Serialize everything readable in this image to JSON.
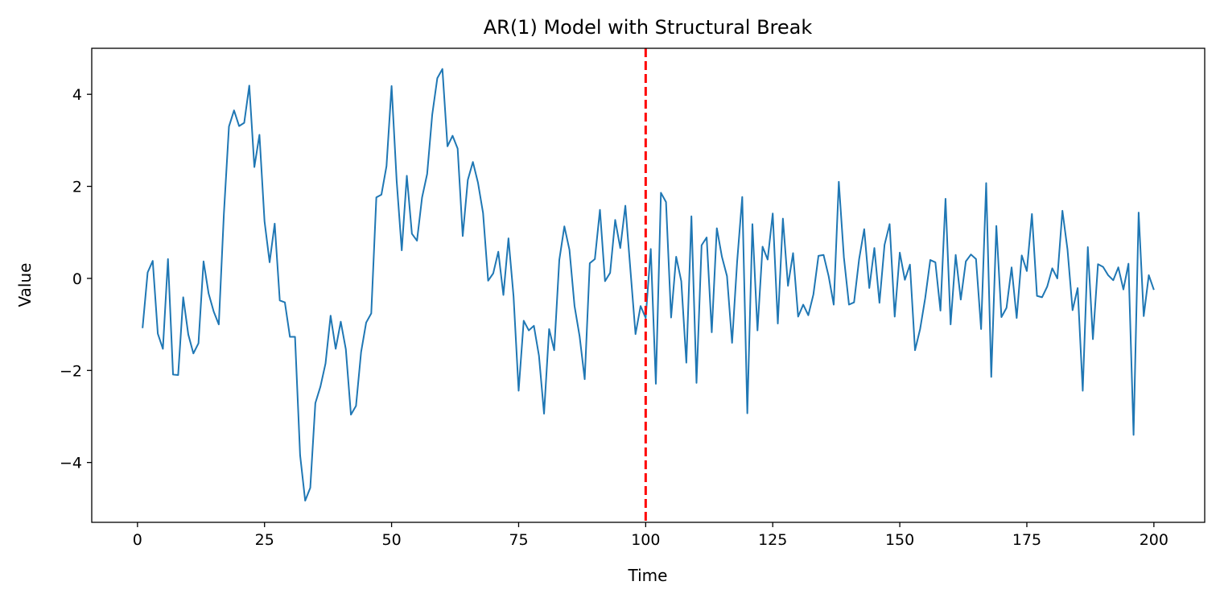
{
  "chart_data": {
    "type": "line",
    "title": "AR(1) Model with Structural Break",
    "xlabel": "Time",
    "ylabel": "Value",
    "xlim": [
      -9,
      210
    ],
    "ylim": [
      -5.3,
      5.0
    ],
    "xticks": [
      0,
      25,
      50,
      75,
      100,
      125,
      150,
      175,
      200
    ],
    "yticks": [
      -4,
      -2,
      0,
      2,
      4
    ],
    "ytick_labels": [
      "−4",
      "−2",
      "0",
      "2",
      "4"
    ],
    "grid": false,
    "series": [
      {
        "color": "#1f77b4",
        "x_start": 1,
        "values": [
          -1.08,
          0.13,
          0.38,
          -1.2,
          -1.53,
          0.42,
          -2.09,
          -2.1,
          -0.41,
          -1.22,
          -1.63,
          -1.41,
          0.37,
          -0.33,
          -0.72,
          -1.0,
          1.4,
          3.3,
          3.65,
          3.31,
          3.38,
          4.19,
          2.42,
          3.12,
          1.24,
          0.35,
          1.19,
          -0.48,
          -0.52,
          -1.27,
          -1.27,
          -3.84,
          -4.83,
          -4.55,
          -2.71,
          -2.35,
          -1.85,
          -0.81,
          -1.53,
          -0.94,
          -1.54,
          -2.96,
          -2.77,
          -1.6,
          -0.96,
          -0.76,
          1.76,
          1.82,
          2.44,
          4.18,
          2.12,
          0.61,
          2.23,
          0.97,
          0.82,
          1.76,
          2.27,
          3.56,
          4.35,
          4.55,
          2.87,
          3.1,
          2.82,
          0.92,
          2.14,
          2.53,
          2.08,
          1.42,
          -0.05,
          0.11,
          0.58,
          -0.36,
          0.87,
          -0.39,
          -2.44,
          -0.92,
          -1.13,
          -1.03,
          -1.68,
          -2.94,
          -1.1,
          -1.56,
          0.4,
          1.13,
          0.62,
          -0.6,
          -1.26,
          -2.19,
          0.33,
          0.42,
          1.49,
          -0.06,
          0.12,
          1.27,
          0.66,
          1.58,
          0.18,
          -1.21,
          -0.6,
          -0.86,
          0.64,
          -2.29,
          1.86,
          1.66,
          -0.85,
          0.47,
          -0.06,
          -1.83,
          1.35,
          -2.27,
          0.72,
          0.89,
          -1.17,
          1.09,
          0.47,
          0.05,
          -1.4,
          0.37,
          1.77,
          -2.93,
          1.18,
          -1.13,
          0.69,
          0.41,
          1.41,
          -0.98,
          1.3,
          -0.16,
          0.55,
          -0.83,
          -0.57,
          -0.8,
          -0.35,
          0.49,
          0.51,
          0.05,
          -0.57,
          2.1,
          0.46,
          -0.57,
          -0.52,
          0.42,
          1.07,
          -0.21,
          0.66,
          -0.53,
          0.73,
          1.18,
          -0.83,
          0.56,
          -0.03,
          0.3,
          -1.56,
          -1.1,
          -0.43,
          0.4,
          0.35,
          -0.7,
          1.73,
          -1.0,
          0.51,
          -0.46,
          0.37,
          0.52,
          0.42,
          -1.1,
          2.07,
          -2.14,
          1.14,
          -0.84,
          -0.64,
          0.24,
          -0.86,
          0.5,
          0.16,
          1.4,
          -0.38,
          -0.41,
          -0.18,
          0.22,
          0.0,
          1.47,
          0.63,
          -0.69,
          -0.21,
          -2.44,
          0.68,
          -1.32,
          0.31,
          0.25,
          0.07,
          -0.04,
          0.24,
          -0.24,
          0.32,
          -3.4,
          1.43,
          -0.82,
          0.07,
          -0.25
        ]
      }
    ],
    "vline": {
      "x": 100,
      "color": "#ff0000",
      "style": "dashed"
    }
  }
}
